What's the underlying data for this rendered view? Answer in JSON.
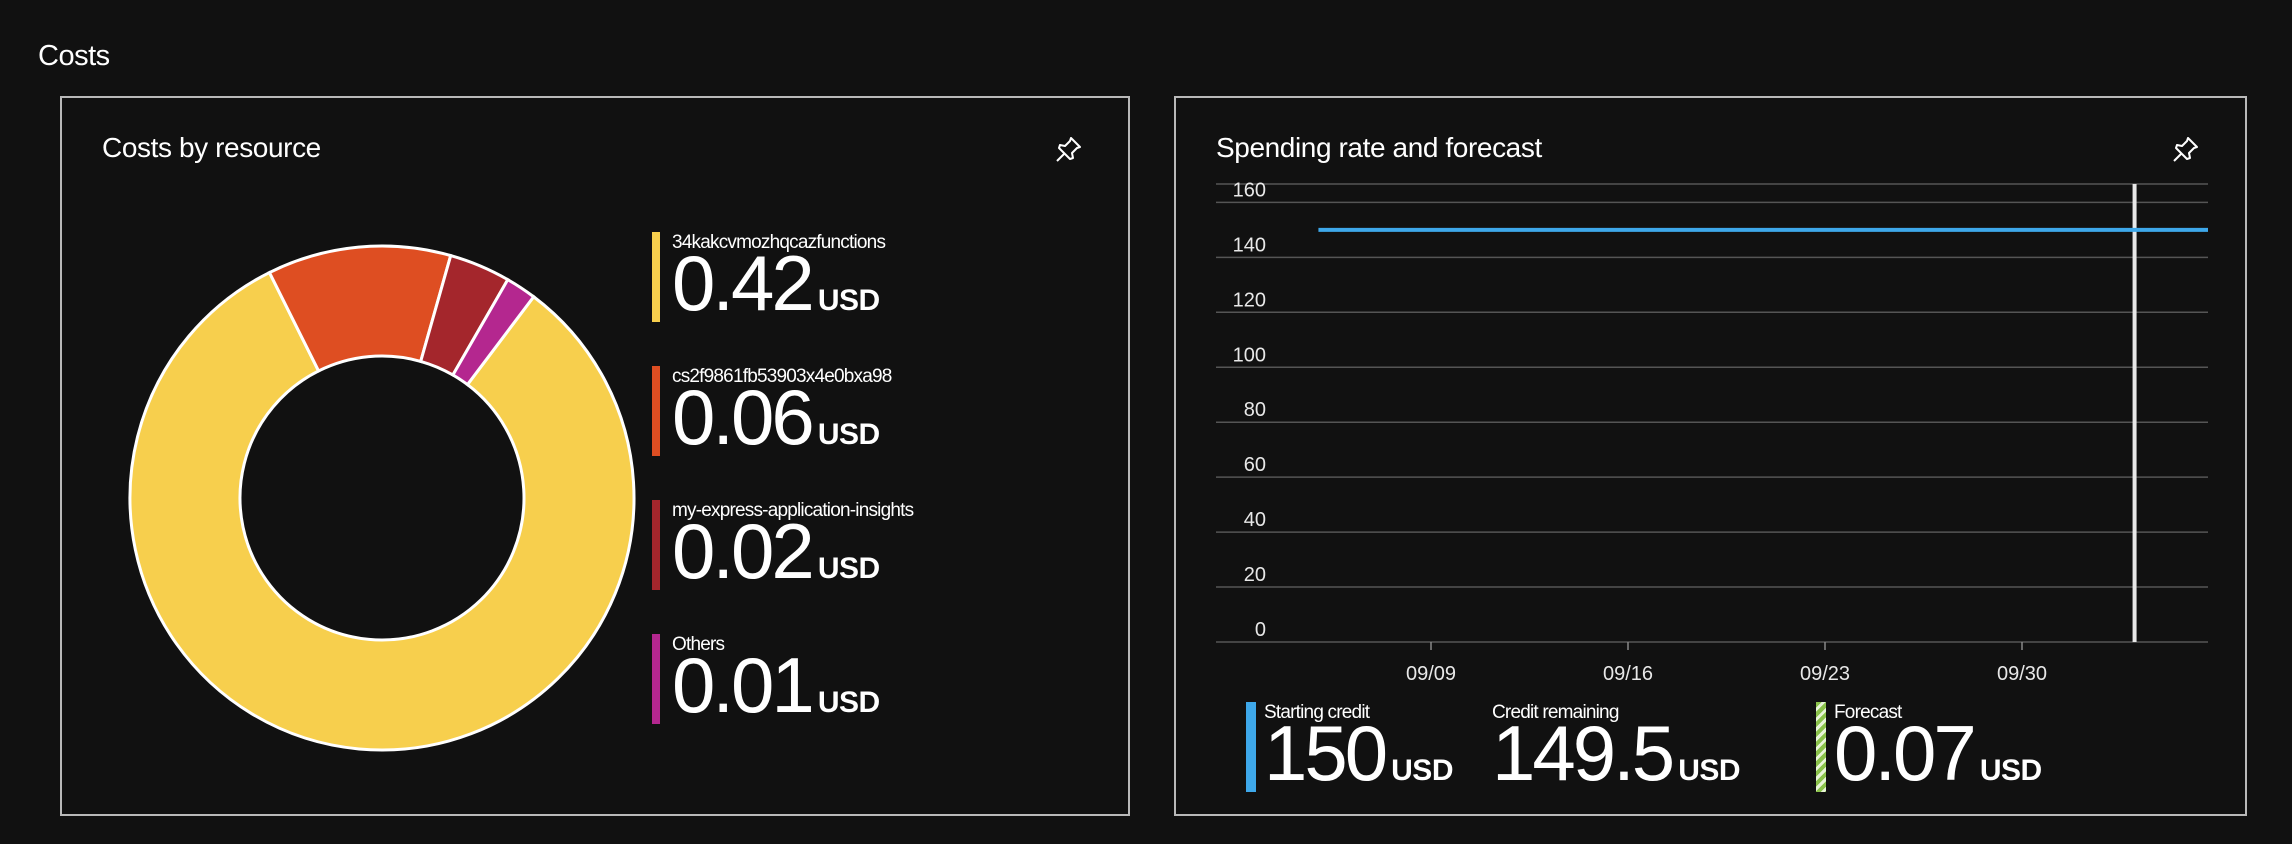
{
  "section": {
    "title": "Costs"
  },
  "left_card": {
    "title": "Costs by resource",
    "pin_icon": "pin-icon",
    "legend": [
      {
        "name": "34kakcvmozhqcazfunctions",
        "value": "0.42",
        "unit": "USD",
        "color": "#f7cf4d"
      },
      {
        "name": "cs2f9861fb53903x4e0bxa98",
        "value": "0.06",
        "unit": "USD",
        "color": "#de4e22"
      },
      {
        "name": "my-express-application-insights",
        "value": "0.02",
        "unit": "USD",
        "color": "#a4262c"
      },
      {
        "name": "Others",
        "value": "0.01",
        "unit": "USD",
        "color": "#b4278f"
      }
    ]
  },
  "right_card": {
    "title": "Spending rate and forecast",
    "pin_icon": "pin-icon",
    "kpis": [
      {
        "label": "Starting credit",
        "value": "150",
        "unit": "USD",
        "color": "#3ea8ea",
        "style": "solid"
      },
      {
        "label": "Credit remaining",
        "value": "149.5",
        "unit": "USD",
        "color": "",
        "style": "none"
      },
      {
        "label": "Forecast",
        "value": "0.07",
        "unit": "USD",
        "color": "#8ac24a",
        "style": "striped"
      }
    ]
  },
  "chart_data": [
    {
      "type": "pie",
      "title": "",
      "labels": [
        "34kakcvmozhqcazfunctions",
        "cs2f9861fb53903x4e0bxa98",
        "my-express-application-insights",
        "Others"
      ],
      "values": [
        0.42,
        0.06,
        0.02,
        0.01
      ],
      "colors": [
        "#f7cf4d",
        "#de4e22",
        "#a4262c",
        "#b4278f"
      ],
      "donut": true
    },
    {
      "type": "line",
      "title": "",
      "xlabel": "",
      "ylabel": "",
      "x_ticks": [
        "09/09",
        "09/16",
        "09/23",
        "09/30"
      ],
      "y_ticks": [
        0,
        20,
        40,
        60,
        80,
        100,
        120,
        140,
        160
      ],
      "ylim": [
        0,
        165
      ],
      "grid": true,
      "series": [
        {
          "x": [
            "09/05",
            "10/07"
          ],
          "values": [
            150,
            150
          ],
          "color": "#3ea8ea"
        }
      ],
      "marker_line": {
        "x": "10/04",
        "color": "#e8e8e8"
      }
    }
  ]
}
